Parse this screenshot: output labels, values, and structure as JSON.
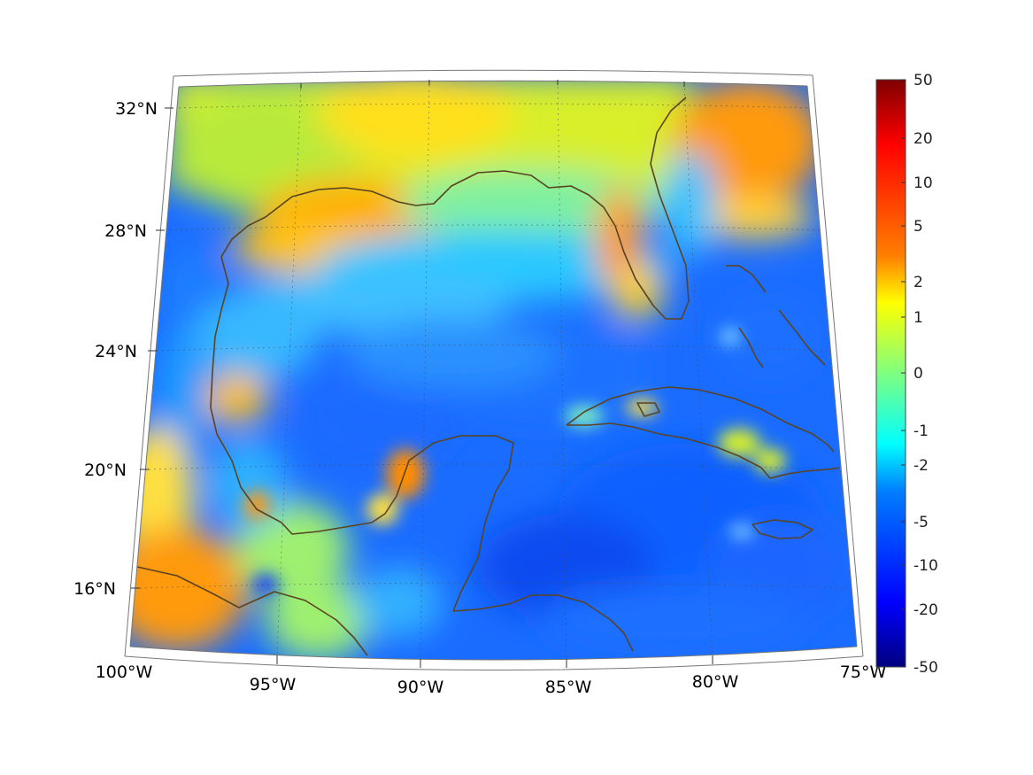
{
  "map": {
    "lon_labels": [
      "100°W",
      "95°W",
      "90°W",
      "85°W",
      "80°W",
      "75°W"
    ],
    "lat_labels": [
      "32°N",
      "28°N",
      "24°N",
      "20°N",
      "16°N"
    ],
    "lon_range": [
      -100,
      -75
    ],
    "lat_range": [
      14,
      33
    ],
    "coastline_color": "#5a4320",
    "graticule": "dotted"
  },
  "colorbar": {
    "colormap": "jet",
    "ticks": [
      "50",
      "20",
      "10",
      "5",
      "2",
      "1",
      "0",
      "-1",
      "-2",
      "-5",
      "-10",
      "-20",
      "-50"
    ],
    "range": [
      -50,
      50
    ]
  }
}
